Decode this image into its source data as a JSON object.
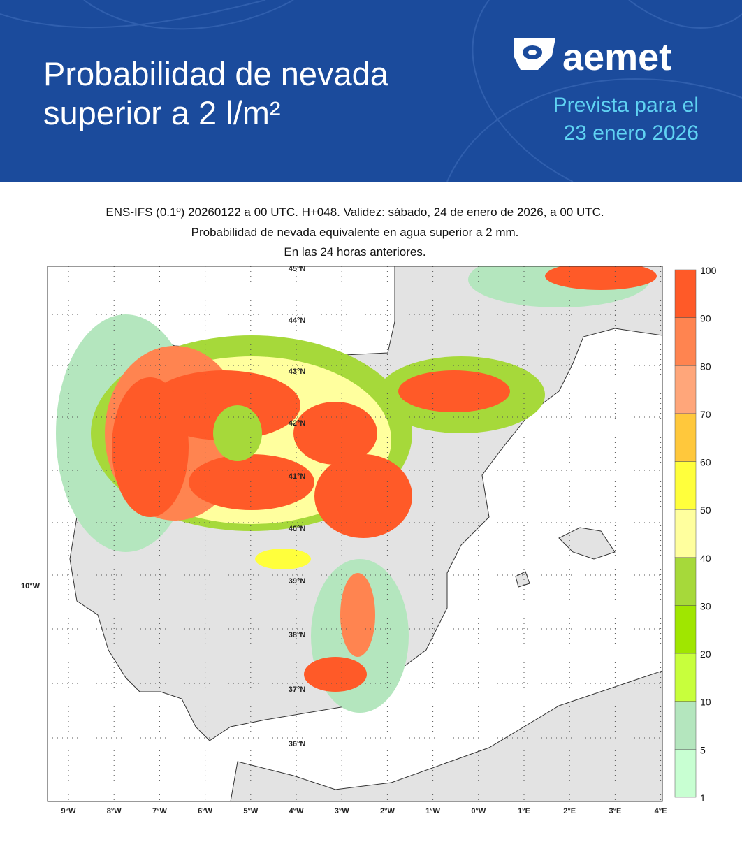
{
  "header": {
    "title": [
      "Probabilidad de nevada",
      "superior a 2 l/m²"
    ],
    "logo": "aemet",
    "subtitle": [
      "Prevista para el",
      "23 enero 2026"
    ]
  },
  "map": {
    "title": [
      "ENS-IFS (0.1º) 20260122 a 00 UTC. H+048. Validez: sábado, 24 de enero de 2026, a 00 UTC.",
      "Probabilidad de nevada equivalente en agua superior a 2 mm.",
      "En las 24 horas anteriores."
    ],
    "latitude_labels": [
      "45°N",
      "44°N",
      "43°N",
      "42°N",
      "41°N",
      "40°N",
      "39°N",
      "38°N",
      "37°N",
      "36°N"
    ],
    "west_label": "10°W",
    "longitude_labels": [
      "9°W",
      "8°W",
      "7°W",
      "6°W",
      "5°W",
      "4°W",
      "3°W",
      "2°W",
      "1°W",
      "0°W",
      "1°E",
      "2°E",
      "3°E",
      "4°E"
    ],
    "legend": {
      "labels": [
        "100",
        "90",
        "80",
        "70",
        "60",
        "50",
        "40",
        "30",
        "20",
        "10",
        "5",
        "1"
      ],
      "colors": [
        "#ff5a28",
        "#ff8450",
        "#ffa67a",
        "#ffc83c",
        "#ffff3c",
        "#ffff9e",
        "#a6d93a",
        "#a0e600",
        "#c8ff3c",
        "#b4e6be",
        "#c8ffd2"
      ]
    }
  }
}
